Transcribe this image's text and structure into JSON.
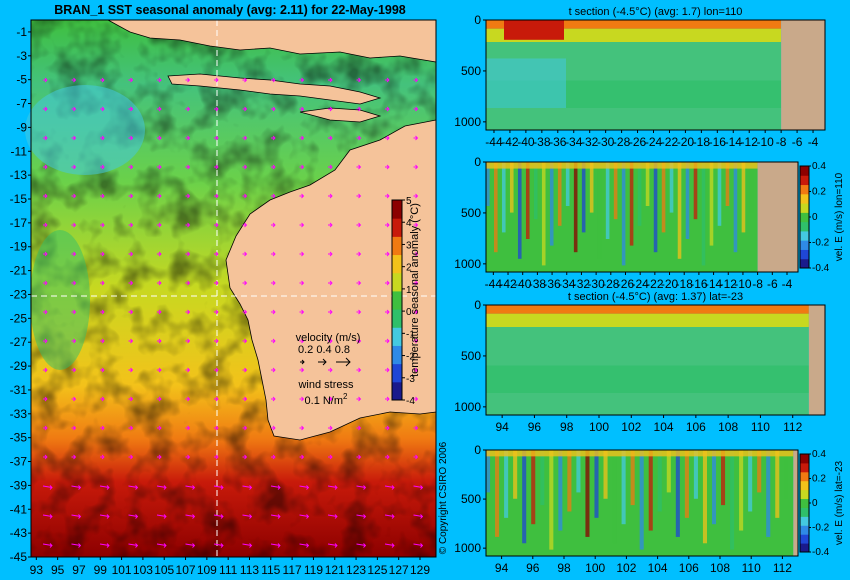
{
  "colors": {
    "background": "#00bfff",
    "land": "#f5c39a",
    "bathymetry": "#c9a98a",
    "vectors": "#ff00ff",
    "colormap": [
      "#1a1a8c",
      "#1f46d6",
      "#2f8ae6",
      "#44c9e0",
      "#2fbf6a",
      "#3fbf3f",
      "#c8d820",
      "#f3c21a",
      "#f07a12",
      "#c81a0a",
      "#8c0000"
    ]
  },
  "map": {
    "title": "BRAN_1  SST seasonal anomaly  (avg: 2.11) for 22-May-1998",
    "colorbar_label": "temperature seasonal anomaly (°C)",
    "velocity_label": "velocity (m/s)",
    "velocity_scale": "0.2 0.4 0.8",
    "wind_label": "wind stress",
    "wind_value": "0.1 N/m",
    "wind_exp": "2",
    "copyright": "© Copyright CSIRO 2006"
  },
  "chart_data": [
    {
      "type": "heatmap",
      "name": "sst-anomaly-map",
      "title": "BRAN_1  SST seasonal anomaly  (avg: 2.11) for 22-May-1998",
      "value_label": "temperature seasonal anomaly (°C)",
      "xlim": [
        92.5,
        130.5
      ],
      "ylim": [
        -45,
        0
      ],
      "x_ticks": [
        93,
        95,
        97,
        99,
        101,
        103,
        105,
        107,
        109,
        111,
        113,
        115,
        117,
        119,
        121,
        123,
        125,
        127,
        129
      ],
      "y_ticks": [
        -1,
        -3,
        -5,
        -7,
        -9,
        -11,
        -13,
        -15,
        -17,
        -19,
        -21,
        -23,
        -25,
        -27,
        -29,
        -31,
        -33,
        -35,
        -37,
        -39,
        -41,
        -43,
        -45
      ],
      "colorbar": {
        "min": -4,
        "max": 5,
        "ticks": [
          5,
          4,
          3,
          2,
          1,
          0,
          -1,
          -2,
          -3,
          -4
        ]
      },
      "section_lines": {
        "lon": 110,
        "lat": -23
      }
    },
    {
      "type": "heatmap",
      "name": "t-section-lon110",
      "title": "t section (-4.5°C) (avg: 1.7) lon=110",
      "xlim": [
        -45,
        -2.5
      ],
      "ylim": [
        1080,
        0
      ],
      "x_ticks": [
        -44,
        -42,
        -40,
        -38,
        -36,
        -34,
        -32,
        -30,
        -28,
        -26,
        -24,
        -22,
        -20,
        -18,
        -16,
        -14,
        -12,
        -10,
        -8,
        -6,
        -4
      ],
      "y_ticks": [
        0,
        500,
        1000
      ],
      "land_from_x": -8
    },
    {
      "type": "heatmap",
      "name": "vel-e-section-lon110",
      "title": "",
      "value_label": "vel. E (m/s) lon=110",
      "xlim": [
        -45,
        -2.5
      ],
      "ylim": [
        1080,
        0
      ],
      "x_ticks": [
        -44,
        -42,
        -40,
        -38,
        -36,
        -34,
        -32,
        -30,
        -28,
        -26,
        -24,
        -22,
        -20,
        -18,
        -16,
        -14,
        -12,
        -10,
        -8,
        -6,
        -4
      ],
      "y_ticks": [
        0,
        500,
        1000
      ],
      "colorbar": {
        "min": -0.4,
        "max": 0.4,
        "ticks": [
          0.4,
          0.2,
          0,
          -0.2,
          -0.4
        ]
      },
      "land_from_x": -8
    },
    {
      "type": "heatmap",
      "name": "t-section-lat-23",
      "title": "t section (-4.5°C) (avg: 1.37) lat=-23",
      "xlim": [
        93,
        114
      ],
      "ylim": [
        1080,
        0
      ],
      "x_ticks": [
        94,
        96,
        98,
        100,
        102,
        104,
        106,
        108,
        110,
        112
      ],
      "y_ticks": [
        0,
        500,
        1000
      ],
      "land_from_x": 113
    },
    {
      "type": "heatmap",
      "name": "vel-e-section-lat-23",
      "title": "",
      "value_label": "vel. E (m/s) lat=-23",
      "xlim": [
        93,
        113
      ],
      "ylim": [
        1080,
        0
      ],
      "x_ticks": [
        94,
        96,
        98,
        100,
        102,
        104,
        106,
        108,
        110,
        112
      ],
      "y_ticks": [
        0,
        500,
        1000
      ],
      "colorbar": {
        "min": -0.4,
        "max": 0.4,
        "ticks": [
          0.4,
          0.2,
          0,
          -0.2,
          -0.4
        ]
      },
      "land_from_x": 112.7
    }
  ]
}
